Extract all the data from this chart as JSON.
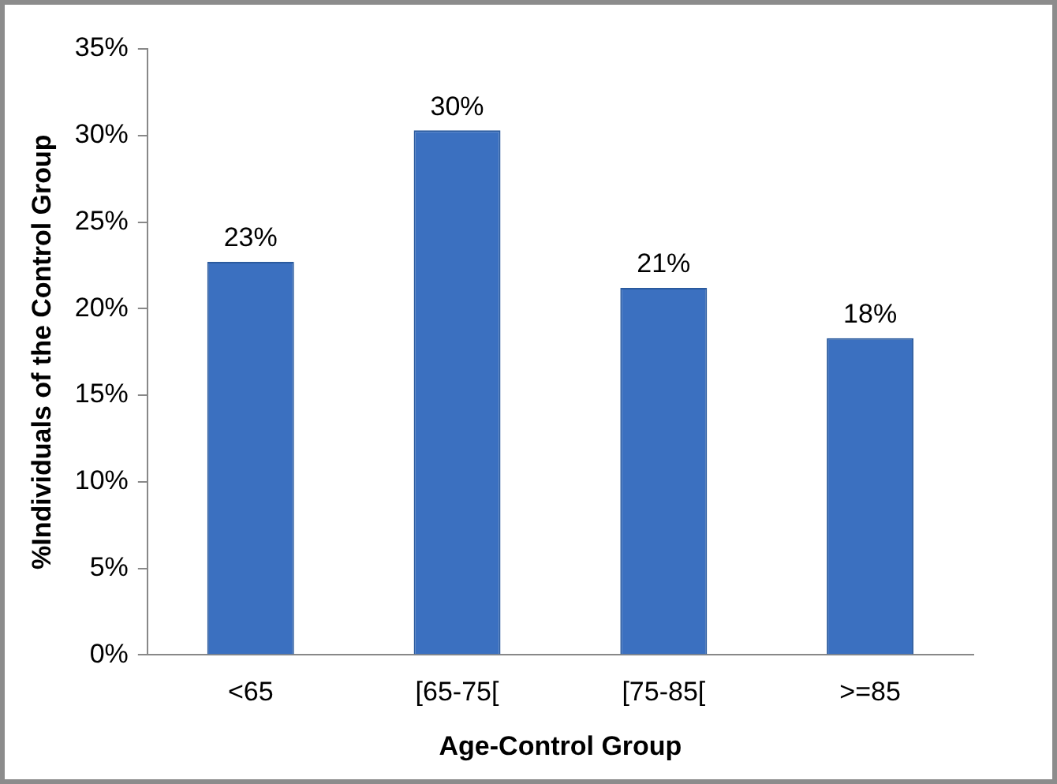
{
  "chart_data": {
    "type": "bar",
    "xlabel": "Age-Control Group",
    "ylabel": "%Individuals of the Control Group",
    "categories": [
      "<65",
      "[65-75[",
      "[75-85[",
      ">=85"
    ],
    "values": [
      22.7,
      30.3,
      21.2,
      18.3
    ],
    "value_labels": [
      "23%",
      "30%",
      "21%",
      "18%"
    ],
    "color": "#3b70c0",
    "ylim": [
      0,
      35
    ],
    "yticks": [
      {
        "value": 0,
        "label": "0%"
      },
      {
        "value": 5,
        "label": "5%"
      },
      {
        "value": 10,
        "label": "10%"
      },
      {
        "value": 15,
        "label": "15%"
      },
      {
        "value": 20,
        "label": "20%"
      },
      {
        "value": 25,
        "label": "25%"
      },
      {
        "value": 30,
        "label": "30%"
      },
      {
        "value": 35,
        "label": "35%"
      }
    ],
    "grid": false,
    "legend": false
  }
}
